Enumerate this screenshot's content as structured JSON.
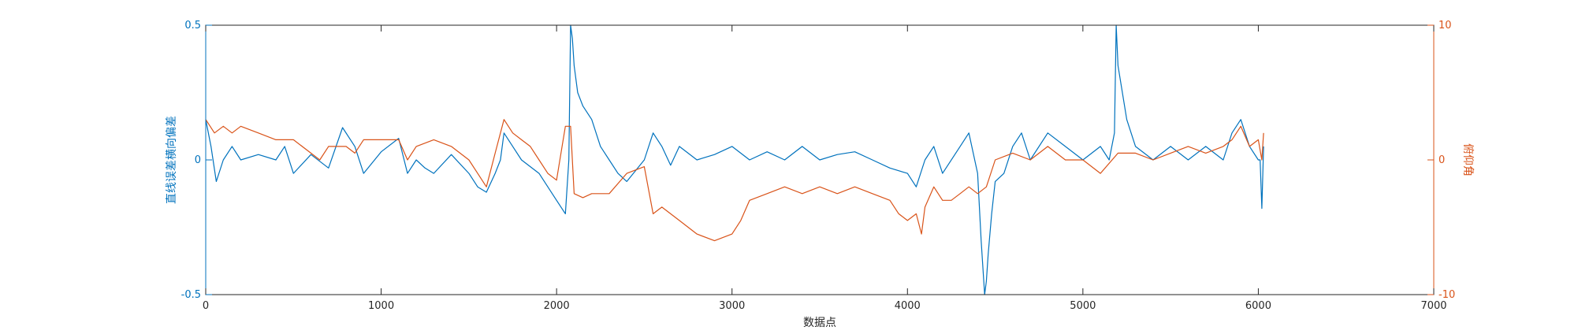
{
  "chart_data": {
    "type": "line",
    "title": "",
    "xlabel": "数据点",
    "ylabel_left": "直线误差横向偏差",
    "ylabel_right": "俯仰角",
    "xlim": [
      0,
      7000
    ],
    "ylim_left": [
      -0.5,
      0.5
    ],
    "ylim_right": [
      -10,
      10
    ],
    "xticks": [
      "0",
      "1000",
      "2000",
      "3000",
      "4000",
      "5000",
      "6000",
      "7000"
    ],
    "yticks_left": [
      "-0.5",
      "0",
      "0.5"
    ],
    "yticks_right": [
      "-10",
      "0",
      "10"
    ],
    "grid": false,
    "legend": "none",
    "colors": {
      "left": "#0072BD",
      "right": "#D95319"
    },
    "series": [
      {
        "axis": "left",
        "color": "#0072BD",
        "x": [
          0,
          30,
          60,
          100,
          150,
          200,
          300,
          400,
          450,
          500,
          600,
          700,
          780,
          850,
          900,
          1000,
          1100,
          1150,
          1200,
          1250,
          1300,
          1400,
          1500,
          1550,
          1600,
          1650,
          1680,
          1700,
          1750,
          1800,
          1900,
          2000,
          2050,
          2070,
          2080,
          2090,
          2100,
          2120,
          2150,
          2200,
          2250,
          2300,
          2350,
          2400,
          2500,
          2550,
          2600,
          2650,
          2700,
          2800,
          2900,
          3000,
          3100,
          3200,
          3300,
          3400,
          3500,
          3600,
          3700,
          3800,
          3900,
          4000,
          4050,
          4100,
          4150,
          4200,
          4300,
          4350,
          4400,
          4420,
          4440,
          4450,
          4460,
          4480,
          4500,
          4550,
          4600,
          4650,
          4700,
          4800,
          4900,
          5000,
          5100,
          5150,
          5180,
          5190,
          5200,
          5250,
          5300,
          5400,
          5500,
          5600,
          5700,
          5800,
          5850,
          5900,
          5950,
          6000,
          6010,
          6020,
          6030
        ],
        "y": [
          0.15,
          0.05,
          -0.08,
          0.0,
          0.05,
          0.0,
          0.02,
          0.0,
          0.05,
          -0.05,
          0.02,
          -0.03,
          0.12,
          0.05,
          -0.05,
          0.03,
          0.08,
          -0.05,
          0.0,
          -0.03,
          -0.05,
          0.02,
          -0.05,
          -0.1,
          -0.12,
          -0.05,
          0.0,
          0.1,
          0.05,
          0.0,
          -0.05,
          -0.15,
          -0.2,
          0.0,
          0.5,
          0.45,
          0.35,
          0.25,
          0.2,
          0.15,
          0.05,
          0.0,
          -0.05,
          -0.08,
          0.0,
          0.1,
          0.05,
          -0.02,
          0.05,
          0.0,
          0.02,
          0.05,
          0.0,
          0.03,
          0.0,
          0.05,
          0.0,
          0.02,
          0.03,
          0.0,
          -0.03,
          -0.05,
          -0.1,
          0.0,
          0.05,
          -0.05,
          0.05,
          0.1,
          -0.05,
          -0.3,
          -0.5,
          -0.45,
          -0.35,
          -0.2,
          -0.08,
          -0.05,
          0.05,
          0.1,
          0.0,
          0.1,
          0.05,
          0.0,
          0.05,
          0.0,
          0.1,
          0.5,
          0.35,
          0.15,
          0.05,
          0.0,
          0.05,
          0.0,
          0.05,
          0.0,
          0.1,
          0.15,
          0.05,
          0.0,
          0.0,
          -0.18,
          0.05
        ]
      },
      {
        "axis": "right",
        "color": "#D95319",
        "x": [
          0,
          50,
          100,
          150,
          200,
          300,
          400,
          500,
          600,
          650,
          700,
          800,
          850,
          900,
          1000,
          1100,
          1150,
          1200,
          1300,
          1400,
          1500,
          1550,
          1600,
          1650,
          1700,
          1750,
          1800,
          1850,
          1900,
          1950,
          2000,
          2050,
          2080,
          2100,
          2150,
          2200,
          2300,
          2400,
          2500,
          2550,
          2600,
          2700,
          2800,
          2900,
          3000,
          3050,
          3100,
          3200,
          3300,
          3400,
          3500,
          3600,
          3700,
          3800,
          3900,
          3950,
          4000,
          4050,
          4080,
          4100,
          4150,
          4200,
          4250,
          4300,
          4350,
          4400,
          4450,
          4500,
          4600,
          4700,
          4800,
          4900,
          5000,
          5100,
          5200,
          5300,
          5400,
          5500,
          5600,
          5700,
          5800,
          5850,
          5900,
          5950,
          6000,
          6020,
          6030
        ],
        "y": [
          3.0,
          2.0,
          2.5,
          2.0,
          2.5,
          2.0,
          1.5,
          1.5,
          0.5,
          0.0,
          1.0,
          1.0,
          0.5,
          1.5,
          1.5,
          1.5,
          0.0,
          1.0,
          1.5,
          1.0,
          0.0,
          -1.0,
          -2.0,
          0.5,
          3.0,
          2.0,
          1.5,
          1.0,
          0.0,
          -1.0,
          -1.5,
          2.5,
          2.5,
          -2.5,
          -2.8,
          -2.5,
          -2.5,
          -1.0,
          -0.5,
          -4.0,
          -3.5,
          -4.5,
          -5.5,
          -6.0,
          -5.5,
          -4.5,
          -3.0,
          -2.5,
          -2.0,
          -2.5,
          -2.0,
          -2.5,
          -2.0,
          -2.5,
          -3.0,
          -4.0,
          -4.5,
          -4.0,
          -5.5,
          -3.5,
          -2.0,
          -3.0,
          -3.0,
          -2.5,
          -2.0,
          -2.5,
          -2.0,
          0.0,
          0.5,
          0.0,
          1.0,
          0.0,
          0.0,
          -1.0,
          0.5,
          0.5,
          0.0,
          0.5,
          1.0,
          0.5,
          1.0,
          1.5,
          2.5,
          1.0,
          1.5,
          0.0,
          2.0
        ]
      }
    ]
  }
}
